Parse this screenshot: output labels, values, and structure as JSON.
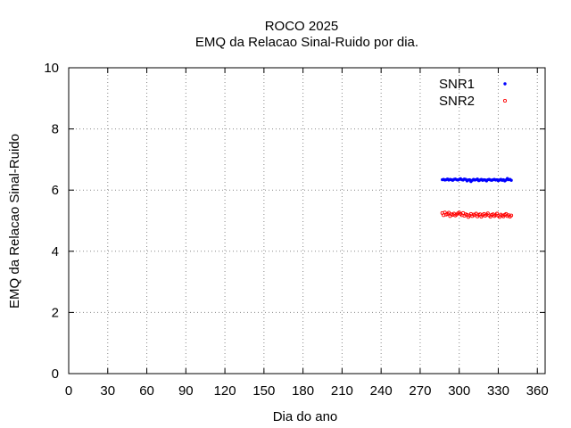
{
  "chart_data": {
    "type": "scatter",
    "title": "ROCO 2025",
    "subtitle": "EMQ da Relacao Sinal-Ruido por dia.",
    "xlabel": "Dia do ano",
    "ylabel": "EMQ da Relacao Sinal-Ruido",
    "xlim": [
      0,
      366
    ],
    "ylim": [
      0,
      10
    ],
    "xticks": [
      "0",
      "30",
      "60",
      "90",
      "120",
      "150",
      "180",
      "210",
      "240",
      "270",
      "300",
      "330",
      "360"
    ],
    "yticks": [
      "0",
      "2",
      "4",
      "6",
      "8",
      "10"
    ],
    "grid": true,
    "legend_position": "top-right",
    "series": [
      {
        "name": "SNR1",
        "color": "#0000ff",
        "marker": "filled-dot",
        "x": [
          287,
          288,
          289,
          290,
          291,
          292,
          293,
          294,
          295,
          296,
          297,
          298,
          299,
          300,
          301,
          302,
          303,
          304,
          305,
          306,
          307,
          308,
          309,
          310,
          311,
          312,
          313,
          314,
          315,
          316,
          317,
          318,
          319,
          320,
          321,
          322,
          323,
          324,
          325,
          326,
          327,
          328,
          329,
          330,
          331,
          332,
          333,
          334,
          335,
          336,
          337,
          338,
          339,
          340
        ],
        "y": [
          6.34,
          6.35,
          6.33,
          6.34,
          6.36,
          6.33,
          6.35,
          6.34,
          6.32,
          6.35,
          6.36,
          6.34,
          6.33,
          6.35,
          6.37,
          6.34,
          6.33,
          6.36,
          6.35,
          6.3,
          6.33,
          6.34,
          6.28,
          6.32,
          6.35,
          6.33,
          6.34,
          6.36,
          6.31,
          6.33,
          6.35,
          6.32,
          6.34,
          6.33,
          6.3,
          6.34,
          6.35,
          6.33,
          6.32,
          6.34,
          6.35,
          6.33,
          6.34,
          6.31,
          6.33,
          6.35,
          6.32,
          6.34,
          6.3,
          6.33,
          6.38,
          6.34,
          6.35,
          6.32
        ]
      },
      {
        "name": "SNR2",
        "color": "#ff0000",
        "marker": "open-circle",
        "x": [
          287,
          288,
          289,
          290,
          291,
          292,
          293,
          294,
          295,
          296,
          297,
          298,
          299,
          300,
          301,
          302,
          303,
          304,
          305,
          306,
          307,
          308,
          309,
          310,
          311,
          312,
          313,
          314,
          315,
          316,
          317,
          318,
          319,
          320,
          321,
          322,
          323,
          324,
          325,
          326,
          327,
          328,
          329,
          330,
          331,
          332,
          333,
          334,
          335,
          336,
          337,
          338,
          339,
          340
        ],
        "y": [
          5.25,
          5.18,
          5.27,
          5.2,
          5.22,
          5.26,
          5.15,
          5.21,
          5.19,
          5.23,
          5.17,
          5.2,
          5.24,
          5.27,
          5.22,
          5.18,
          5.25,
          5.16,
          5.21,
          5.19,
          5.12,
          5.17,
          5.22,
          5.15,
          5.2,
          5.18,
          5.23,
          5.14,
          5.19,
          5.21,
          5.13,
          5.18,
          5.22,
          5.16,
          5.2,
          5.24,
          5.17,
          5.13,
          5.19,
          5.21,
          5.15,
          5.18,
          5.23,
          5.16,
          5.12,
          5.2,
          5.17,
          5.14,
          5.19,
          5.22,
          5.15,
          5.18,
          5.13,
          5.17
        ]
      }
    ]
  }
}
